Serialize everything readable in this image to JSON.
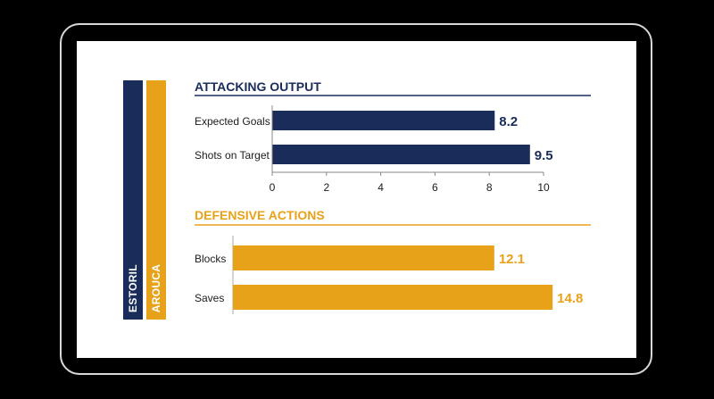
{
  "teams": [
    {
      "name": "ESTORIL",
      "color": "#1a2d5a"
    },
    {
      "name": "AROUCA",
      "color": "#e8a21a"
    }
  ],
  "chart_data": [
    {
      "type": "bar",
      "orientation": "horizontal",
      "title": "ATTACKING OUTPUT",
      "categories": [
        "Expected Goals",
        "Shots on Target"
      ],
      "values": [
        8.2,
        9.5
      ],
      "value_labels": [
        "8.2",
        "9.5"
      ],
      "xlim": [
        0,
        10
      ],
      "xticks": [
        "0",
        "2",
        "4",
        "6",
        "8",
        "10"
      ],
      "color": "#1a2d5a",
      "grid": false
    },
    {
      "type": "bar",
      "orientation": "horizontal",
      "title": "DEFENSIVE ACTIONS",
      "categories": [
        "Blocks",
        "Saves"
      ],
      "values": [
        12.1,
        14.8
      ],
      "value_labels": [
        "12.1",
        "14.8"
      ],
      "color": "#e8a21a",
      "grid": false
    }
  ]
}
